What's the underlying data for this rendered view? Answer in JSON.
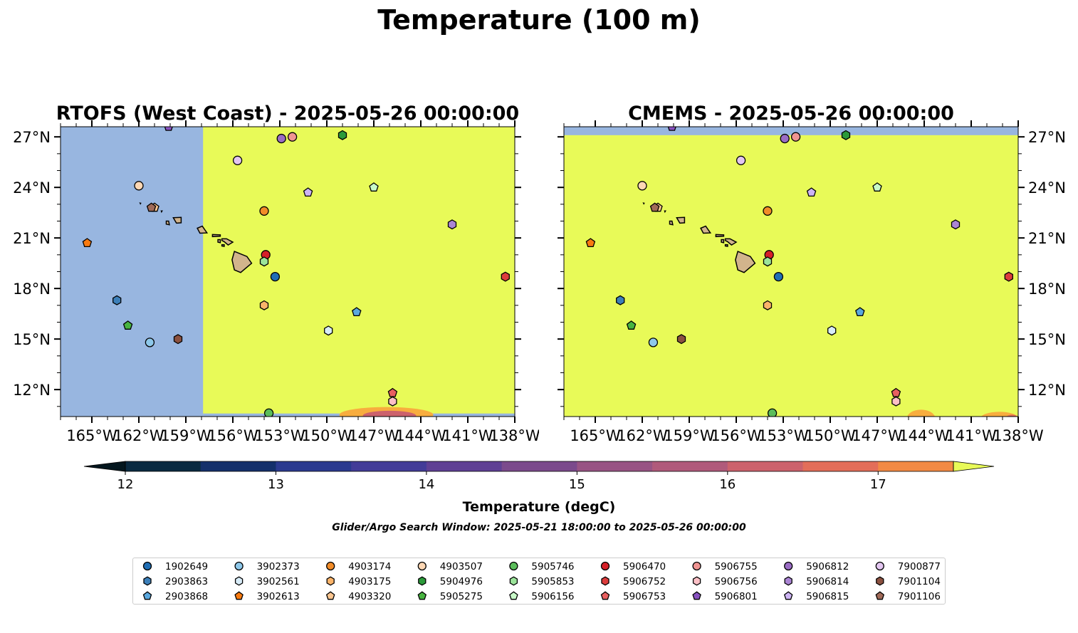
{
  "figure": {
    "title": "Temperature (100 m)",
    "colorbar_label": "Temperature (degC)",
    "search_window": "Glider/Argo Search Window: 2025-05-21 18:00:00 to 2025-05-26 00:00:00"
  },
  "chart_data": [
    {
      "type": "heatmap",
      "title": "RTOFS (West Coast) - 2025-05-26 00:00:00",
      "xlim": [
        -167,
        -138
      ],
      "ylim": [
        10.4,
        27.6
      ],
      "xticks": [
        -165,
        -162,
        -159,
        -156,
        -153,
        -150,
        -147,
        -144,
        -141,
        -138
      ],
      "xtick_labels": [
        "165°W",
        "162°W",
        "159°W",
        "156°W",
        "153°W",
        "150°W",
        "147°W",
        "144°W",
        "141°W",
        "138°W"
      ],
      "yticks": [
        12,
        15,
        18,
        21,
        24,
        27
      ],
      "ytick_labels": [
        "12°N",
        "15°N",
        "18°N",
        "21°N",
        "24°N",
        "27°N"
      ],
      "ytick_side": "left",
      "model_domain_west_edge_lon": -157.9,
      "no_data_color": "#98b6e0",
      "dominant_value_color": "#e8fa58",
      "warm_patch_values_degC": [
        15.5,
        17
      ]
    },
    {
      "type": "heatmap",
      "title": "CMEMS - 2025-05-26 00:00:00",
      "xlim": [
        -167,
        -138
      ],
      "ylim": [
        10.4,
        27.6
      ],
      "xticks": [
        -165,
        -162,
        -159,
        -156,
        -153,
        -150,
        -147,
        -144,
        -141,
        -138
      ],
      "xtick_labels": [
        "165°W",
        "162°W",
        "159°W",
        "156°W",
        "153°W",
        "150°W",
        "147°W",
        "144°W",
        "141°W",
        "138°W"
      ],
      "yticks": [
        12,
        15,
        18,
        21,
        24,
        27
      ],
      "ytick_labels": [
        "12°N",
        "15°N",
        "18°N",
        "21°N",
        "24°N",
        "27°N"
      ],
      "ytick_side": "right",
      "model_domain_north_edge_lat": 27.1,
      "no_data_color": "#98b6e0",
      "dominant_value_color": "#e8fa58",
      "warm_patch_values_degC": [
        16,
        17
      ]
    }
  ],
  "colorbar": {
    "min": 11.75,
    "max": 17.75,
    "ticks": [
      12,
      13,
      14,
      15,
      16,
      17
    ],
    "levels": [
      12,
      12.5,
      13,
      13.5,
      14,
      14.5,
      15,
      15.5,
      16,
      16.5,
      17,
      17.5
    ],
    "colors": [
      "#0a2a41",
      "#14306b",
      "#2b3a8f",
      "#433c98",
      "#5f4094",
      "#7b4a8c",
      "#985484",
      "#b05a7b",
      "#cc626c",
      "#e36e59",
      "#f28a44",
      "#f8ad3e",
      "#f5d246"
    ],
    "under_color": "#03161e",
    "over_color": "#e8fa58",
    "extend": "both"
  },
  "observations": [
    {
      "id": "1902649",
      "lon": -153.3,
      "lat": 18.7,
      "shape": "circle",
      "color": "#1f6eb4"
    },
    {
      "id": "3902373",
      "lon": -161.3,
      "lat": 14.8,
      "shape": "circle",
      "color": "#8ec8ea"
    },
    {
      "id": "4903174",
      "lon": -154.0,
      "lat": 22.6,
      "shape": "circle",
      "color": "#f28c28"
    },
    {
      "id": "4903507",
      "lon": -162.0,
      "lat": 24.1,
      "shape": "circle",
      "color": "#fdd7b4"
    },
    {
      "id": "5905746",
      "lon": -153.7,
      "lat": 10.6,
      "shape": "circle",
      "color": "#5bbd5b"
    },
    {
      "id": "5906470",
      "lon": -153.9,
      "lat": 20.0,
      "shape": "circle",
      "color": "#d62028"
    },
    {
      "id": "5906755",
      "lon": -152.2,
      "lat": 27.0,
      "shape": "circle",
      "color": "#f09492"
    },
    {
      "id": "5906812",
      "lon": -152.9,
      "lat": 26.9,
      "shape": "circle",
      "color": "#9a6cc4"
    },
    {
      "id": "7900877",
      "lon": -155.7,
      "lat": 25.6,
      "shape": "circle",
      "color": "#e3c6f1"
    },
    {
      "id": "2903863",
      "lon": -163.4,
      "lat": 17.3,
      "shape": "hexagon",
      "color": "#3c7fb9"
    },
    {
      "id": "3902561",
      "lon": -149.9,
      "lat": 15.5,
      "shape": "hexagon",
      "color": "#d8ecf8"
    },
    {
      "id": "4903175",
      "lon": -154.0,
      "lat": 17.0,
      "shape": "hexagon",
      "color": "#fbb46a"
    },
    {
      "id": "5904976",
      "lon": -149.0,
      "lat": 27.1,
      "shape": "hexagon",
      "color": "#2b9a3a"
    },
    {
      "id": "5905853",
      "lon": -154.0,
      "lat": 19.6,
      "shape": "hexagon",
      "color": "#9be49a"
    },
    {
      "id": "5906752",
      "lon": -138.6,
      "lat": 18.7,
      "shape": "hexagon",
      "color": "#dc3c3c"
    },
    {
      "id": "5906756",
      "lon": -145.8,
      "lat": 11.3,
      "shape": "hexagon",
      "color": "#fcc0c6"
    },
    {
      "id": "5906814",
      "lon": -142.0,
      "lat": 21.8,
      "shape": "hexagon",
      "color": "#ab85d4"
    },
    {
      "id": "7901104",
      "lon": -159.5,
      "lat": 15.0,
      "shape": "hexagon",
      "color": "#8b5140"
    },
    {
      "id": "2903868",
      "lon": -148.1,
      "lat": 16.6,
      "shape": "pentagon",
      "color": "#5aa8de"
    },
    {
      "id": "3902613",
      "lon": -165.3,
      "lat": 20.7,
      "shape": "pentagon",
      "color": "#f87a10"
    },
    {
      "id": "4903320",
      "lon": -161.0,
      "lat": 22.8,
      "shape": "pentagon",
      "color": "#fcc690"
    },
    {
      "id": "5905275",
      "lon": -162.7,
      "lat": 15.8,
      "shape": "pentagon",
      "color": "#48b440"
    },
    {
      "id": "5906156",
      "lon": -147.0,
      "lat": 24.0,
      "shape": "pentagon",
      "color": "#c8fac8"
    },
    {
      "id": "5906753",
      "lon": -145.8,
      "lat": 11.8,
      "shape": "pentagon",
      "color": "#e86060"
    },
    {
      "id": "5906801",
      "lon": -160.1,
      "lat": 27.6,
      "shape": "pentagon",
      "color": "#8852c0"
    },
    {
      "id": "5906815",
      "lon": -151.2,
      "lat": 23.7,
      "shape": "pentagon",
      "color": "#cdb4f4"
    },
    {
      "id": "7901106",
      "lon": -161.2,
      "lat": 22.8,
      "shape": "pentagon",
      "color": "#a06a58"
    }
  ],
  "legend": {
    "ncol": 9,
    "placement": "bottom-center",
    "order": [
      "1902649",
      "2903863",
      "2903868",
      "3902373",
      "3902561",
      "3902613",
      "4903174",
      "4903175",
      "4903320",
      "4903507",
      "5904976",
      "5905275",
      "5905746",
      "5905853",
      "5906156",
      "5906470",
      "5906752",
      "5906753",
      "5906755",
      "5906756",
      "5906801",
      "5906812",
      "5906814",
      "5906815",
      "7900877",
      "7901104",
      "7901106"
    ]
  },
  "colors": {
    "land": "#d2b48c",
    "no_data": "#98b6e0"
  }
}
